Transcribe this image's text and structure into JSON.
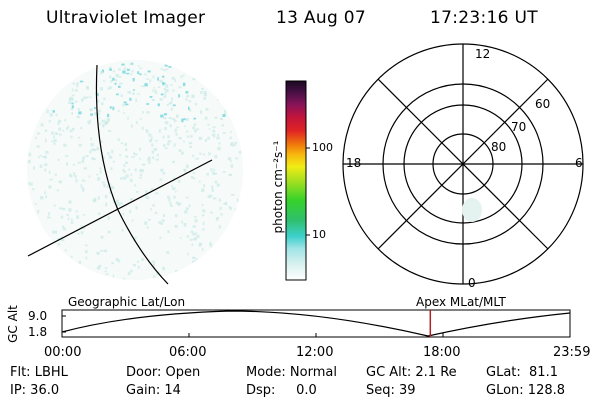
{
  "header": {
    "instrument": "Ultraviolet Imager",
    "date": "13 Aug 07",
    "time": "17:23:16 UT"
  },
  "colorbar": {
    "label": "photon cm⁻²s⁻¹",
    "tick_labels": [
      "100",
      "10"
    ]
  },
  "polar_plot": {
    "mlt_labels": {
      "top": "12",
      "left": "18",
      "right": "6",
      "bottom": "0"
    },
    "lat_labels": [
      "60",
      "70",
      "80"
    ]
  },
  "timeline": {
    "left_title": "Geographic Lat/Lon",
    "right_title": "Apex MLat/MLT",
    "ylabel": "GC Alt",
    "y_ticks": [
      "9.0",
      "1.8"
    ],
    "x_ticks": [
      "00:00",
      "06:00",
      "12:00",
      "18:00",
      "23:59"
    ],
    "current_time_fraction": 0.725
  },
  "info": {
    "flt": "Flt: LBHL",
    "ip": "IP: 36.0",
    "door": "Door: Open",
    "gain": "Gain: 14",
    "mode": "Mode: Normal",
    "dsp": "Dsp:     0.0",
    "gcalt": "GC Alt: 2.1 Re",
    "seq": "Seq: 39",
    "glat": "GLat:  81.1",
    "glon": "GLon: 128.8"
  },
  "colors": {
    "emission": "#7fd8e0",
    "marker": "#b22222"
  }
}
